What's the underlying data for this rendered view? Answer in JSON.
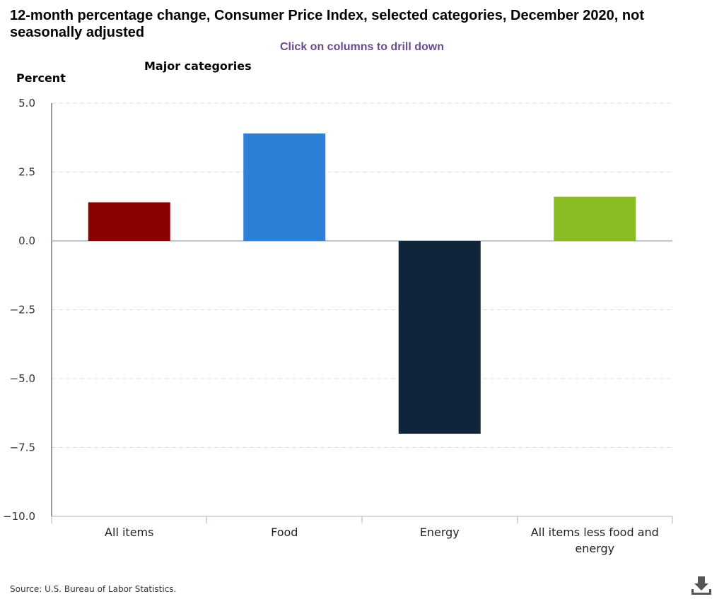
{
  "header": {
    "title": "12-month percentage change, Consumer Price Index, selected categories, December 2020, not seasonally adjusted",
    "subtitle": "Click on columns to drill down",
    "breadcrumb": "Major categories"
  },
  "footer": {
    "source": "Source: U.S. Bureau of Labor Statistics.",
    "download_icon": "download-icon"
  },
  "chart_data": {
    "type": "bar",
    "title": "12-month percentage change, Consumer Price Index, selected categories, December 2020, not seasonally adjusted",
    "subtitle": "Click on columns to drill down",
    "ylabel": "Percent",
    "xlabel": "",
    "categories": [
      "All items",
      "Food",
      "Energy",
      "All items less food and energy"
    ],
    "category_lines": [
      [
        "All items"
      ],
      [
        "Food"
      ],
      [
        "Energy"
      ],
      [
        "All items less food and",
        "energy"
      ]
    ],
    "values": [
      1.4,
      3.9,
      -7.0,
      1.6
    ],
    "colors": [
      "#8b0000",
      "#2e7fd8",
      "#10243a",
      "#8abd24"
    ],
    "ylim": [
      -10.0,
      5.0
    ],
    "yticks": [
      5.0,
      2.5,
      0.0,
      -2.5,
      -5.0,
      -7.5,
      -10.0
    ],
    "ytick_labels": [
      "5.0",
      "2.5",
      "0.0",
      "−2.5",
      "−5.0",
      "−7.5",
      "−10.0"
    ],
    "grid": true,
    "legend": "none"
  }
}
